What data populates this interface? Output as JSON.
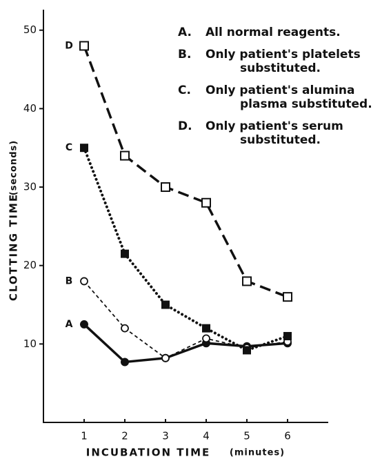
{
  "chart_data": {
    "type": "line",
    "x_label": "INCUBATION TIME",
    "x_unit": "(minutes)",
    "y_label": "CLOTTING TIME",
    "y_unit": "(seconds)",
    "x": [
      1,
      2,
      3,
      4,
      5,
      6
    ],
    "xlim": [
      0,
      7
    ],
    "xticks": [
      1,
      2,
      3,
      4,
      5,
      6
    ],
    "ylim": [
      0,
      52
    ],
    "yticks": [
      10,
      20,
      30,
      40,
      50
    ],
    "series": [
      {
        "name": "A",
        "color": "#111111",
        "line": "solid",
        "marker": "filled-circle",
        "values": [
          12.5,
          7.7,
          8.2,
          10.1,
          9.7,
          10.1
        ]
      },
      {
        "name": "B",
        "color": "#111111",
        "line": "dashed",
        "marker": "open-circle",
        "values": [
          18,
          12,
          8.2,
          10.7,
          9.5,
          10.3
        ]
      },
      {
        "name": "C",
        "color": "#111111",
        "line": "dotted",
        "marker": "filled-square",
        "values": [
          35,
          21.5,
          15,
          12,
          9.2,
          11
        ]
      },
      {
        "name": "D",
        "color": "#111111",
        "line": "long-dash",
        "marker": "open-square",
        "values": [
          48,
          34,
          30,
          28,
          18,
          16
        ]
      }
    ],
    "legend": [
      {
        "key": "A.",
        "lines": [
          "All normal reagents."
        ]
      },
      {
        "key": "B.",
        "lines": [
          "Only patient's platelets",
          "substituted."
        ]
      },
      {
        "key": "C.",
        "lines": [
          "Only patient's alumina",
          "plasma substituted."
        ]
      },
      {
        "key": "D.",
        "lines": [
          "Only patient's serum",
          "substituted."
        ]
      }
    ]
  }
}
